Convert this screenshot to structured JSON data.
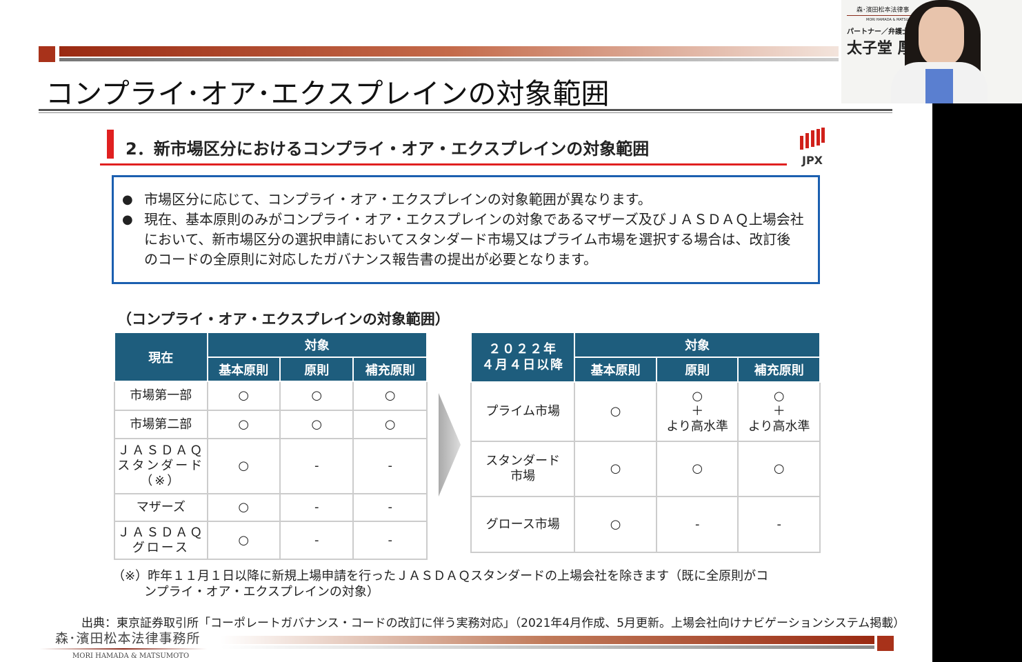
{
  "slide": {
    "title": "コンプライ･オア･エクスプレインの対象範囲",
    "section_heading": "2．新市場区分におけるコンプライ・オア・エクスプレインの対象範囲",
    "logo": "JPX",
    "bullets": [
      "市場区分に応じて、コンプライ・オア・エクスプレインの対象範囲が異なります。",
      "現在、基本原則のみがコンプライ・オア・エクスプレインの対象であるマザーズ及びＪＡＳＤＡＱ上場会社において、新市場区分の選択申請においてスタンダード市場又はプライム市場を選択する場合は、改訂後のコードの全原則に対応したガバナンス報告書の提出が必要となります。"
    ],
    "table_heading": "（コンプライ・オア・エクスプレインの対象範囲）",
    "left_table": {
      "corner": "現在",
      "group": "対象",
      "cols": [
        "基本原則",
        "原則",
        "補充原則"
      ],
      "rows": [
        [
          "市場第一部",
          "○",
          "○",
          "○"
        ],
        [
          "市場第二部",
          "○",
          "○",
          "○"
        ],
        [
          "ＪＡＳＤＡＱ\nスタンダード\n（※）",
          "○",
          "-",
          "-"
        ],
        [
          "マザーズ",
          "○",
          "-",
          "-"
        ],
        [
          "ＪＡＳＤＡＱ\nグロース",
          "○",
          "-",
          "-"
        ]
      ]
    },
    "right_table": {
      "corner": "２０２２年\n４月４日以降",
      "group": "対象",
      "cols": [
        "基本原則",
        "原則",
        "補充原則"
      ],
      "rows": [
        [
          "プライム市場",
          "○",
          "○\n＋\nより高水準",
          "○\n＋\nより高水準"
        ],
        [
          "スタンダード\n市場",
          "○",
          "○",
          "○"
        ],
        [
          "グロース市場",
          "○",
          "-",
          "-"
        ]
      ]
    },
    "note": [
      "（※）昨年１１月１日以降に新規上場申請を行ったＪＡＳＤＡＱスタンダードの上場会社を除きます（既に全原則がコ",
      "ンプライ・オア・エクスプレインの対象）"
    ],
    "source": "出典：東京証券取引所「コーポレートガバナンス・コードの改訂に伴う実務対応」（2021年4月作成、5月更新。上場会社向けナビゲーションシステム掲載）",
    "footer_logo_jp": "森･濱田松本法律事務所",
    "footer_logo_en": "MORI HAMADA & MATSUMOTO"
  },
  "video": {
    "firm": "森･濱田松本法律事",
    "firm_en": "MORI HAMADA & MATSU",
    "role": "パートナー／弁護士",
    "name": "太子堂 厚"
  },
  "colors": {
    "header": "#1e5d7d",
    "accent": "#e02020",
    "box": "#1b5fb0"
  }
}
